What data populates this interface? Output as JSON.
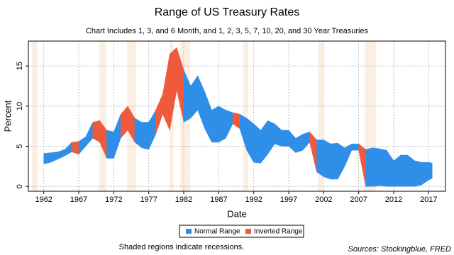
{
  "chart_data": {
    "type": "range",
    "title": "Range of US Treasury Rates",
    "subtitle": "Chart Includes 1, 3, and 6 Month, and 1, 2, 3, 5, 7, 10, 20, and 30 Year Treasuries",
    "x_label": "Date",
    "y_label": "Percent",
    "series": [
      {
        "name": "Normal Range",
        "color": "#2f8fe8"
      },
      {
        "name": "Inverted Range",
        "color": "#f05a3c"
      }
    ],
    "x": [
      1962,
      1963,
      1964,
      1965,
      1966,
      1967,
      1968,
      1969,
      1970,
      1971,
      1972,
      1973,
      1974,
      1975,
      1976,
      1977,
      1978,
      1979,
      1980,
      1981,
      1982,
      1983,
      1984,
      1985,
      1986,
      1987,
      1988,
      1989,
      1990,
      1991,
      1992,
      1993,
      1994,
      1995,
      1996,
      1997,
      1998,
      1999,
      2000,
      2001,
      2002,
      2003,
      2004,
      2005,
      2006,
      2007,
      2008,
      2009,
      2010,
      2011,
      2012,
      2013,
      2014,
      2015,
      2016,
      2017,
      2017.5
    ],
    "low": [
      2.8,
      3.0,
      3.4,
      3.8,
      4.3,
      4.0,
      5.0,
      6.0,
      5.5,
      3.5,
      3.5,
      6.0,
      7.0,
      5.5,
      4.8,
      4.6,
      6.5,
      9.0,
      7.0,
      12.0,
      8.0,
      8.5,
      9.5,
      7.2,
      5.5,
      5.5,
      6.0,
      7.8,
      7.2,
      4.5,
      3.0,
      2.9,
      4.0,
      5.3,
      5.0,
      5.0,
      4.2,
      4.5,
      5.5,
      1.8,
      1.2,
      0.9,
      0.9,
      2.5,
      4.5,
      4.5,
      0.0,
      0.0,
      0.1,
      0.0,
      0.0,
      0.0,
      0.0,
      0.0,
      0.2,
      0.8,
      1.0
    ],
    "high": [
      4.1,
      4.2,
      4.3,
      4.6,
      5.5,
      5.6,
      6.2,
      8.0,
      8.2,
      7.0,
      6.8,
      9.0,
      10.0,
      8.5,
      8.0,
      8.0,
      9.5,
      11.5,
      16.5,
      17.3,
      14.5,
      12.5,
      13.8,
      11.8,
      9.5,
      10.0,
      9.5,
      9.2,
      9.0,
      8.5,
      7.8,
      7.0,
      8.2,
      7.8,
      7.0,
      7.0,
      6.0,
      6.5,
      6.8,
      5.8,
      5.8,
      5.3,
      5.4,
      4.8,
      5.3,
      5.3,
      4.6,
      4.8,
      4.7,
      4.5,
      3.2,
      3.9,
      3.9,
      3.2,
      3.0,
      3.0,
      2.9
    ],
    "kind": [
      0,
      0,
      0,
      0,
      1,
      0,
      0,
      1,
      1,
      0,
      0,
      1,
      1,
      0,
      0,
      0,
      1,
      1,
      1,
      1,
      0,
      0,
      0,
      0,
      0,
      0,
      0,
      1,
      0,
      0,
      0,
      0,
      0,
      0,
      0,
      0,
      0,
      0,
      1,
      0,
      0,
      0,
      0,
      0,
      0,
      1,
      0,
      0,
      0,
      0,
      0,
      0,
      0,
      0,
      0,
      0,
      0
    ],
    "recessions": [
      [
        1960.3,
        1961.1
      ],
      [
        1969.9,
        1970.9
      ],
      [
        1973.9,
        1975.2
      ],
      [
        1980.0,
        1980.5
      ],
      [
        1981.5,
        1982.9
      ],
      [
        1990.5,
        1991.2
      ],
      [
        2001.2,
        2001.9
      ],
      [
        2007.9,
        2009.5
      ]
    ],
    "recession_color": "#fbeee2",
    "xlim": [
      1959.8,
      2019.4
    ],
    "xticks": [
      1962,
      1967,
      1972,
      1977,
      1982,
      1987,
      1992,
      1997,
      2002,
      2007,
      2012,
      2017
    ],
    "ylim": [
      -0.6,
      18.1
    ],
    "yticks": [
      0,
      5,
      10,
      15
    ],
    "grid": true,
    "note": "Shaded regions indicate recessions.",
    "source": "Sources: Stockingblue, FRED"
  }
}
